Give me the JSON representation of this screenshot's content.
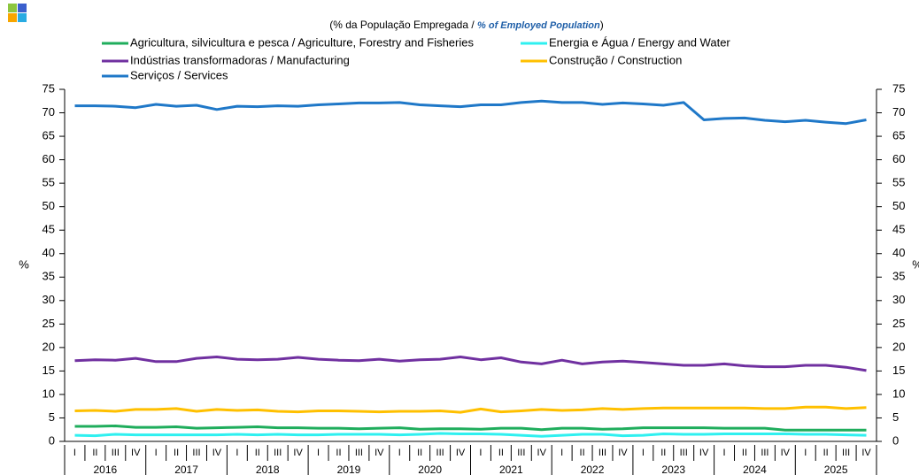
{
  "chart_data": {
    "type": "line",
    "subtitle": [
      "(% da População Empregada / ",
      "% of Employed Population",
      ")"
    ],
    "ylabel": "%",
    "categories": [
      "I",
      "II",
      "III",
      "IV",
      "I",
      "II",
      "III",
      "IV",
      "I",
      "II",
      "III",
      "IV",
      "I",
      "II",
      "III",
      "IV",
      "I",
      "II",
      "III",
      "IV",
      "I",
      "II",
      "III",
      "IV",
      "I",
      "II",
      "III",
      "IV",
      "I",
      "II",
      "III",
      "IV",
      "I",
      "II",
      "III",
      "IV",
      "I",
      "II",
      "III",
      "IV"
    ],
    "years": [
      "2016",
      "2017",
      "2018",
      "2019",
      "2020",
      "2021",
      "2022",
      "2023",
      "2024",
      "2025"
    ],
    "ylim": [
      0,
      75
    ],
    "yticks": [
      0,
      5,
      10,
      15,
      20,
      25,
      30,
      35,
      40,
      45,
      50,
      55,
      60,
      65,
      70,
      75
    ],
    "series": [
      {
        "name": "Agricultura, silvicultura e pesca / Agriculture, Forestry and Fisheries",
        "color": "#1fad5c",
        "values": [
          3.2,
          3.2,
          3.3,
          3.0,
          3.0,
          3.1,
          2.8,
          2.9,
          3.0,
          3.1,
          2.9,
          2.9,
          2.8,
          2.8,
          2.7,
          2.8,
          2.9,
          2.6,
          2.7,
          2.7,
          2.6,
          2.8,
          2.8,
          2.5,
          2.8,
          2.8,
          2.6,
          2.7,
          2.9,
          2.9,
          2.9,
          2.9,
          2.8,
          2.8,
          2.8,
          2.4,
          2.4,
          2.4,
          2.4,
          2.4
        ]
      },
      {
        "name": "Energia e Água / Energy and Water",
        "color": "#2ff0f0",
        "values": [
          1.3,
          1.2,
          1.5,
          1.4,
          1.4,
          1.4,
          1.4,
          1.4,
          1.5,
          1.4,
          1.5,
          1.4,
          1.4,
          1.5,
          1.5,
          1.5,
          1.4,
          1.5,
          1.7,
          1.6,
          1.6,
          1.5,
          1.3,
          1.1,
          1.3,
          1.5,
          1.5,
          1.2,
          1.3,
          1.6,
          1.5,
          1.5,
          1.6,
          1.6,
          1.6,
          1.6,
          1.5,
          1.5,
          1.4,
          1.3
        ]
      },
      {
        "name": "Indústrias transformadoras / Manufacturing",
        "color": "#7030a0",
        "values": [
          17.2,
          17.4,
          17.3,
          17.7,
          17.0,
          17.0,
          17.7,
          18.0,
          17.5,
          17.4,
          17.5,
          17.9,
          17.5,
          17.3,
          17.2,
          17.5,
          17.1,
          17.4,
          17.5,
          18.0,
          17.4,
          17.8,
          16.9,
          16.5,
          17.3,
          16.5,
          16.9,
          17.1,
          16.8,
          16.5,
          16.2,
          16.2,
          16.5,
          16.1,
          15.9,
          15.9,
          16.2,
          16.2,
          15.8,
          15.1
        ]
      },
      {
        "name": "Construção / Construction",
        "color": "#ffc000",
        "values": [
          6.5,
          6.6,
          6.4,
          6.8,
          6.8,
          7.0,
          6.4,
          6.8,
          6.6,
          6.7,
          6.4,
          6.3,
          6.5,
          6.5,
          6.4,
          6.3,
          6.4,
          6.4,
          6.5,
          6.2,
          6.9,
          6.3,
          6.5,
          6.8,
          6.6,
          6.7,
          7.0,
          6.8,
          7.0,
          7.1,
          7.1,
          7.1,
          7.1,
          7.1,
          7.0,
          7.0,
          7.3,
          7.3,
          7.0,
          7.2
        ]
      },
      {
        "name": "Serviços / Services",
        "color": "#1f78c8",
        "values": [
          71.5,
          71.5,
          71.4,
          71.1,
          71.8,
          71.4,
          71.6,
          70.7,
          71.4,
          71.3,
          71.5,
          71.4,
          71.7,
          71.9,
          72.1,
          72.1,
          72.2,
          71.7,
          71.5,
          71.3,
          71.7,
          71.7,
          72.2,
          72.5,
          72.2,
          72.2,
          71.8,
          72.1,
          71.9,
          71.6,
          72.2,
          68.5,
          68.8,
          68.9,
          68.4,
          68.1,
          68.4,
          68.0,
          67.7,
          68.5
        ]
      }
    ]
  }
}
